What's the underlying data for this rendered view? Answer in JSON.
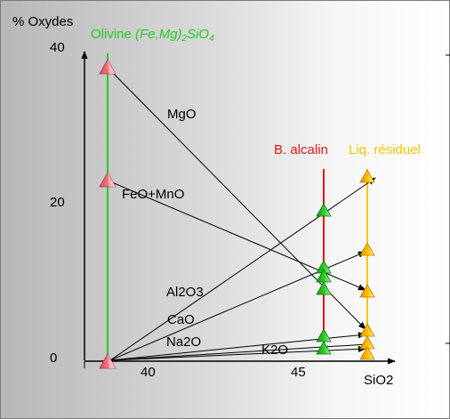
{
  "diagram": {
    "y_axis_label": "% Oxydes",
    "x_axis_label": "SiO2",
    "y_ticks": [
      "40",
      "20",
      "0"
    ],
    "x_ticks": [
      "40",
      "45"
    ],
    "columns": {
      "olivine": {
        "label_plain": "Olivine ",
        "label_formula_a": "(Fe,Mg)",
        "label_formula_sub": "2",
        "label_formula_b": "SiO",
        "label_formula_sub2": "4",
        "color": "#22cc22"
      },
      "basalt": {
        "label": "B. alcalin",
        "color": "#ee1111"
      },
      "residual": {
        "label": "Liq. résiduel",
        "color": "#ffc400"
      }
    },
    "oxide_labels": [
      "MgO",
      "FeO+MnO",
      "Al2O3",
      "CaO",
      "Na2O",
      "K2O"
    ],
    "colors": {
      "olivine_marker": "#f07080",
      "basalt_marker": "#33c633",
      "residual_marker": "#ffb800",
      "arrow": "#000000"
    }
  }
}
